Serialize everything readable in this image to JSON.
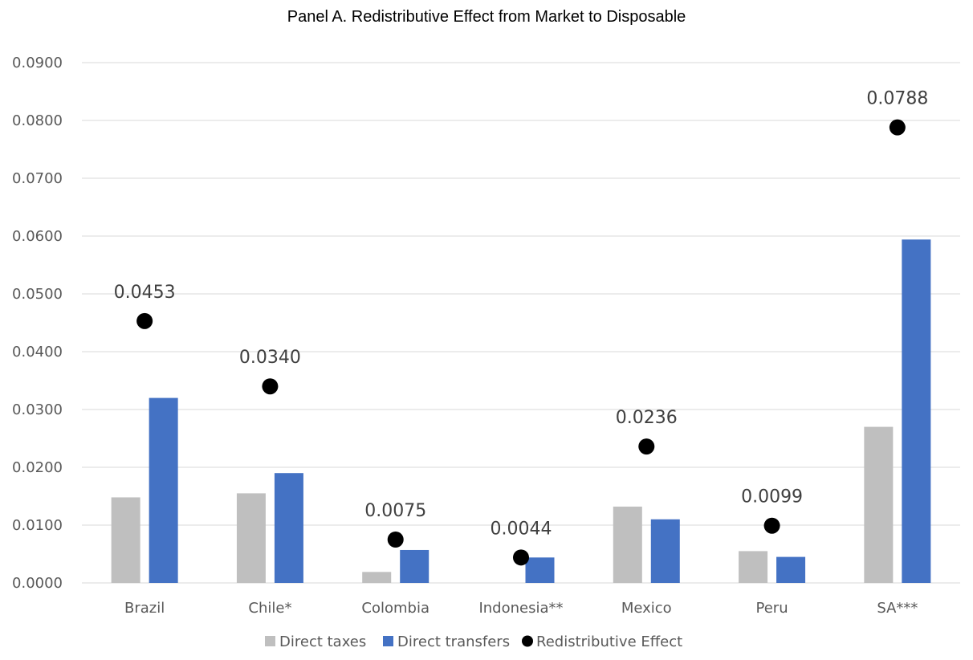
{
  "chart_data": {
    "type": "bar",
    "title": "Panel A. Redistributive Effect from Market to Disposable",
    "xlabel": "",
    "ylabel": "",
    "categories": [
      "Brazil",
      "Chile*",
      "Colombia",
      "Indonesia**",
      "Mexico",
      "Peru",
      "SA***"
    ],
    "ylim": [
      0,
      0.09
    ],
    "yticks": [
      "0.0000",
      "0.0100",
      "0.0200",
      "0.0300",
      "0.0400",
      "0.0500",
      "0.0600",
      "0.0700",
      "0.0800",
      "0.0900"
    ],
    "grid": true,
    "legend_position": "bottom",
    "series": [
      {
        "name": "Direct taxes",
        "type": "bar",
        "color": "#bfbfbf",
        "values": [
          0.0148,
          0.0155,
          0.0019,
          0.0,
          0.0132,
          0.0055,
          0.027
        ]
      },
      {
        "name": "Direct transfers",
        "type": "bar",
        "color": "#4472c4",
        "values": [
          0.032,
          0.019,
          0.0057,
          0.0044,
          0.011,
          0.0045,
          0.0594
        ]
      },
      {
        "name": "Redistributive Effect",
        "type": "scatter",
        "color": "#000000",
        "values": [
          0.0453,
          0.034,
          0.0075,
          0.0044,
          0.0236,
          0.0099,
          0.0788
        ],
        "labels": [
          "0.0453",
          "0.0340",
          "0.0075",
          "0.0044",
          "0.0236",
          "0.0099",
          "0.0788"
        ]
      }
    ]
  }
}
